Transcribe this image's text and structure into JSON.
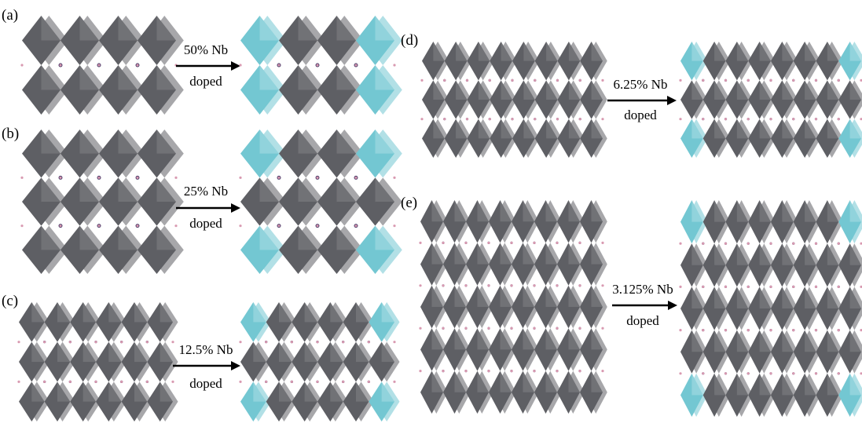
{
  "colors": {
    "host_octahedron": "#5e5f64",
    "dopant_octahedron": "#73c7d2",
    "arrow": "#000000",
    "oxygen_site": "#d99ab1",
    "cation_site": "#3b2d5e"
  },
  "panels": [
    {
      "label": "(a)",
      "arrow_top": "50% Nb",
      "arrow_bottom": "doped",
      "host_structure": {
        "columns": 4,
        "rows": 2
      },
      "doped_structure": {
        "columns": 4,
        "rows": 2,
        "doped_fraction": 0.5
      }
    },
    {
      "label": "(b)",
      "arrow_top": "25% Nb",
      "arrow_bottom": "doped",
      "host_structure": {
        "columns": 4,
        "rows": 3
      },
      "doped_structure": {
        "columns": 4,
        "rows": 3,
        "doped_fraction": 0.25
      }
    },
    {
      "label": "(c)",
      "arrow_top": "12.5% Nb",
      "arrow_bottom": "doped",
      "host_structure": {
        "columns": 6,
        "rows": 3
      },
      "doped_structure": {
        "columns": 6,
        "rows": 3,
        "doped_fraction": 0.125
      }
    },
    {
      "label": "(d)",
      "arrow_top": "6.25% Nb",
      "arrow_bottom": "doped",
      "host_structure": {
        "columns": 8,
        "rows": 3
      },
      "doped_structure": {
        "columns": 8,
        "rows": 3,
        "doped_fraction": 0.0625
      }
    },
    {
      "label": "(e)",
      "arrow_top": "3.125% Nb",
      "arrow_bottom": "doped",
      "host_structure": {
        "columns": 8,
        "rows": 5
      },
      "doped_structure": {
        "columns": 8,
        "rows": 5,
        "doped_fraction": 0.03125
      }
    }
  ]
}
